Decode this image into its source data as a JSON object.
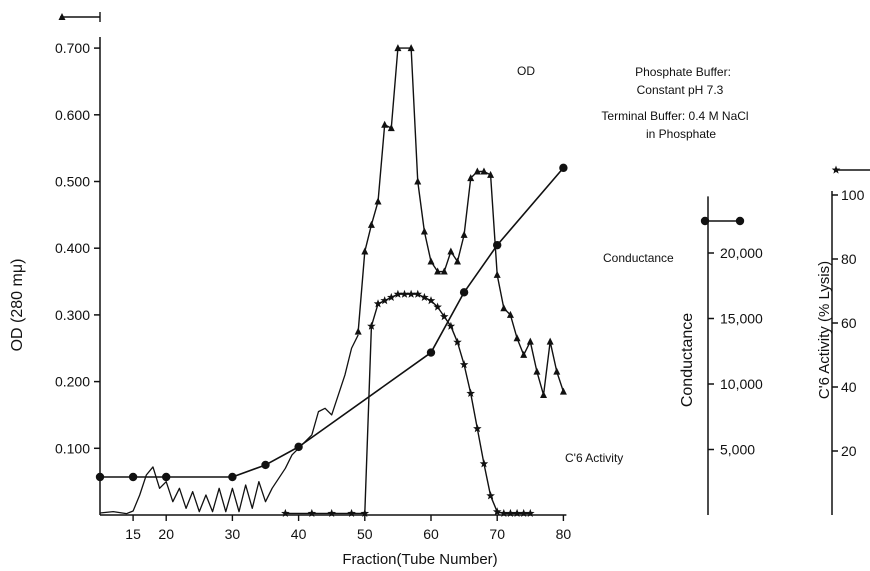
{
  "chart_data": {
    "type": "line",
    "xlabel": "Fraction(Tube Number)",
    "x_ticks": [
      15,
      20,
      30,
      40,
      50,
      60,
      70,
      80
    ],
    "xlim": [
      10,
      80
    ],
    "left_axis": {
      "label": "OD (280 mμ)",
      "ylim": [
        0,
        0.7
      ],
      "tick_labels": [
        "0.700",
        "0.600",
        "0.500",
        "0.400",
        "0.300",
        "0.200",
        "0.100"
      ],
      "tick_values": [
        0.7,
        0.6,
        0.5,
        0.4,
        0.3,
        0.2,
        0.1
      ]
    },
    "conductance_axis": {
      "label": "Conductance",
      "tick_labels": [
        "20,000",
        "15,000",
        "10,000",
        "5,000"
      ],
      "tick_values": [
        20000,
        15000,
        10000,
        5000
      ],
      "ylim": [
        0,
        24167
      ]
    },
    "activity_axis": {
      "label": "C'6 Activity (% Lysis)",
      "tick_labels": [
        "100",
        "80",
        "60",
        "40",
        "20"
      ],
      "tick_values": [
        100,
        80,
        60,
        40,
        20
      ],
      "ylim": [
        0,
        100
      ]
    },
    "annotations": [
      "Phosphate Buffer:",
      "Constant pH 7.3",
      "Terminal Buffer: 0.4 M NaCl",
      "in Phosphate"
    ],
    "series": [
      {
        "name": "OD",
        "axis": "left",
        "marker": "triangle",
        "unmarked": [
          [
            10,
            0.003
          ],
          [
            12,
            0.005
          ],
          [
            14,
            0.002
          ],
          [
            15,
            0.006
          ],
          [
            16,
            0.03
          ],
          [
            17,
            0.06
          ],
          [
            18,
            0.072
          ],
          [
            19,
            0.04
          ],
          [
            20,
            0.05
          ],
          [
            21,
            0.02
          ],
          [
            22,
            0.04
          ],
          [
            23,
            0.01
          ],
          [
            24,
            0.035
          ],
          [
            25,
            0.005
          ],
          [
            26,
            0.03
          ],
          [
            27,
            0.005
          ],
          [
            28,
            0.04
          ],
          [
            29,
            0.005
          ],
          [
            30,
            0.04
          ],
          [
            31,
            0.005
          ],
          [
            32,
            0.045
          ],
          [
            33,
            0.01
          ],
          [
            34,
            0.05
          ],
          [
            35,
            0.02
          ],
          [
            36,
            0.04
          ],
          [
            37,
            0.055
          ],
          [
            38,
            0.07
          ],
          [
            39,
            0.09
          ],
          [
            40,
            0.1
          ],
          [
            41,
            0.11
          ],
          [
            42,
            0.12
          ],
          [
            43,
            0.155
          ],
          [
            44,
            0.16
          ],
          [
            45,
            0.15
          ],
          [
            46,
            0.18
          ],
          [
            47,
            0.21
          ],
          [
            48,
            0.25
          ],
          [
            49,
            0.27
          ]
        ],
        "marked": [
          [
            49,
            0.275
          ],
          [
            50,
            0.395
          ],
          [
            51,
            0.435
          ],
          [
            52,
            0.47
          ],
          [
            53,
            0.585
          ],
          [
            54,
            0.58
          ],
          [
            55,
            0.7
          ],
          [
            57,
            0.7
          ],
          [
            58,
            0.5
          ],
          [
            59,
            0.425
          ],
          [
            60,
            0.38
          ],
          [
            61,
            0.365
          ],
          [
            62,
            0.365
          ],
          [
            63,
            0.395
          ],
          [
            64,
            0.38
          ],
          [
            65,
            0.42
          ],
          [
            66,
            0.505
          ],
          [
            67,
            0.515
          ],
          [
            68,
            0.515
          ],
          [
            69,
            0.51
          ],
          [
            70,
            0.36
          ],
          [
            71,
            0.31
          ],
          [
            72,
            0.3
          ],
          [
            73,
            0.265
          ],
          [
            74,
            0.24
          ],
          [
            75,
            0.26
          ],
          [
            76,
            0.215
          ],
          [
            77,
            0.18
          ],
          [
            78,
            0.26
          ],
          [
            79,
            0.215
          ],
          [
            80,
            0.185
          ]
        ]
      },
      {
        "name": "Conductance",
        "axis": "conductance",
        "marker": "circle",
        "points": [
          [
            10,
            2900
          ],
          [
            15,
            2900
          ],
          [
            20,
            2900
          ],
          [
            30,
            2900
          ],
          [
            35,
            3820
          ],
          [
            40,
            5200
          ],
          [
            60,
            12400
          ],
          [
            65,
            17000
          ],
          [
            70,
            20600
          ],
          [
            80,
            26500
          ]
        ]
      },
      {
        "name": "C'6 Activity",
        "axis": "activity",
        "marker": "star",
        "points": [
          [
            38,
            0.5
          ],
          [
            42,
            0.5
          ],
          [
            45,
            0.5
          ],
          [
            48,
            0.5
          ],
          [
            50,
            0.5
          ],
          [
            51,
            59
          ],
          [
            52,
            66
          ],
          [
            53,
            67
          ],
          [
            54,
            68
          ],
          [
            55,
            69
          ],
          [
            56,
            69
          ],
          [
            57,
            69
          ],
          [
            58,
            69
          ],
          [
            59,
            68
          ],
          [
            60,
            67
          ],
          [
            61,
            65
          ],
          [
            62,
            62
          ],
          [
            63,
            59
          ],
          [
            64,
            54
          ],
          [
            65,
            47
          ],
          [
            66,
            38
          ],
          [
            67,
            27
          ],
          [
            68,
            16
          ],
          [
            69,
            6
          ],
          [
            70,
            1
          ],
          [
            71,
            0.5
          ],
          [
            72,
            0.5
          ],
          [
            73,
            0.5
          ],
          [
            74,
            0.5
          ],
          [
            75,
            0.5
          ]
        ]
      }
    ],
    "series_labels": {
      "od": "OD",
      "conductance": "Conductance",
      "activity": "C'6 Activity"
    },
    "colors": {
      "ink": "#111111",
      "background": "#ffffff"
    }
  }
}
